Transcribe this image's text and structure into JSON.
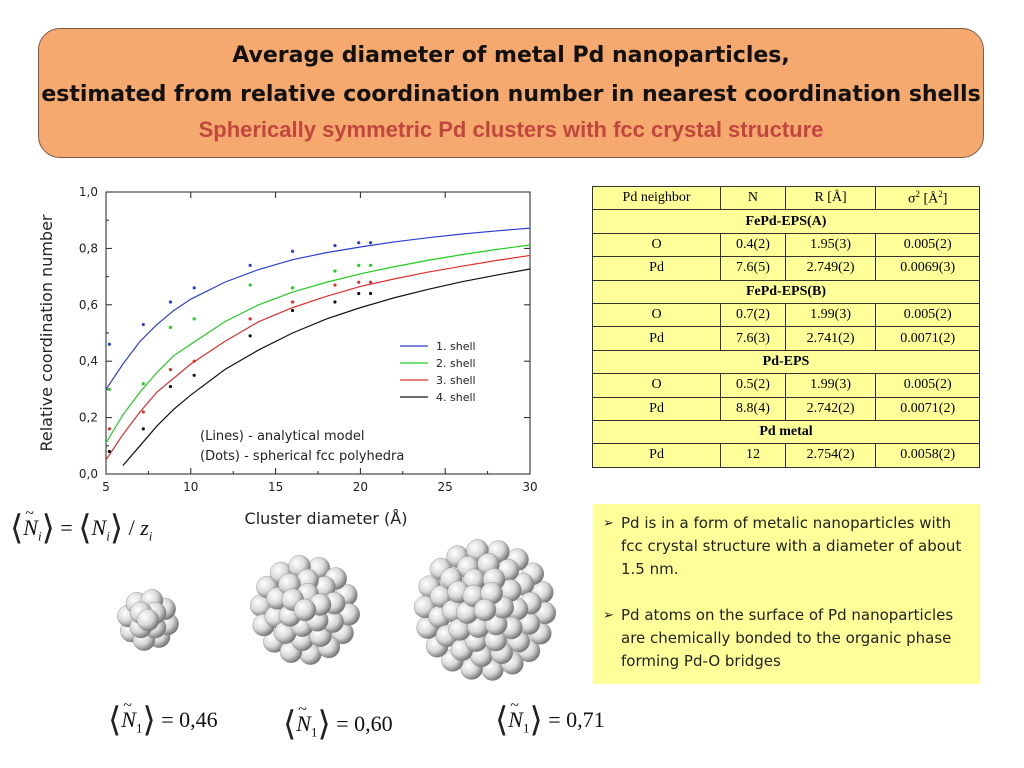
{
  "banner": {
    "title_line1": "Average diameter of metal Pd nanoparticles,",
    "title_line2": "estimated from relative coordination number in nearest coordination shells",
    "subtitle": "Spherically symmetric Pd clusters with  fcc crystal structure"
  },
  "chart_data": {
    "type": "line",
    "xlabel": "Cluster diameter (Å)",
    "ylabel": "Relative coordination number",
    "xlim": [
      5,
      30
    ],
    "ylim": [
      0.0,
      1.0
    ],
    "xticks": [
      "5",
      "10",
      "15",
      "20",
      "25",
      "30"
    ],
    "yticks": [
      "0,0",
      "0,2",
      "0,4",
      "0,6",
      "0,8",
      "1,0"
    ],
    "legend_position": "center-right",
    "annotation_lines": "(Lines) - analytical model",
    "annotation_dots": "(Dots)  - spherical fcc polyhedra",
    "series": [
      {
        "name": "1. shell",
        "color": "#2b3fd1",
        "line_x": [
          5,
          6,
          7,
          8,
          9,
          10,
          12,
          14,
          16,
          18,
          20,
          22,
          24,
          26,
          28,
          30
        ],
        "line_y": [
          0.3,
          0.39,
          0.47,
          0.53,
          0.58,
          0.62,
          0.68,
          0.725,
          0.76,
          0.785,
          0.805,
          0.823,
          0.838,
          0.851,
          0.862,
          0.872
        ],
        "dots_x": [
          5.2,
          7.2,
          8.8,
          10.2,
          13.5,
          16.0,
          18.5,
          19.9,
          20.6
        ],
        "dots_y": [
          0.46,
          0.53,
          0.61,
          0.66,
          0.74,
          0.79,
          0.81,
          0.82,
          0.82
        ]
      },
      {
        "name": "2. shell",
        "color": "#22cc22",
        "line_x": [
          5,
          6,
          7,
          8,
          9,
          10,
          12,
          14,
          16,
          18,
          20,
          22,
          24,
          26,
          28,
          30
        ],
        "line_y": [
          0.11,
          0.21,
          0.29,
          0.36,
          0.42,
          0.46,
          0.54,
          0.6,
          0.645,
          0.68,
          0.71,
          0.735,
          0.758,
          0.778,
          0.796,
          0.812
        ],
        "dots_x": [
          5.2,
          7.2,
          8.8,
          10.2,
          13.5,
          16.0,
          18.5,
          19.9,
          20.6
        ],
        "dots_y": [
          0.3,
          0.32,
          0.52,
          0.55,
          0.67,
          0.66,
          0.72,
          0.74,
          0.74
        ]
      },
      {
        "name": "3. shell",
        "color": "#e03030",
        "line_x": [
          5,
          6,
          7,
          8,
          9,
          10,
          12,
          14,
          16,
          18,
          20,
          22,
          24,
          26,
          28,
          30
        ],
        "line_y": [
          0.05,
          0.14,
          0.22,
          0.29,
          0.34,
          0.39,
          0.47,
          0.54,
          0.59,
          0.63,
          0.665,
          0.692,
          0.716,
          0.737,
          0.757,
          0.775
        ],
        "dots_x": [
          5.2,
          7.2,
          8.8,
          10.2,
          13.5,
          16.0,
          18.5,
          19.9,
          20.6
        ],
        "dots_y": [
          0.16,
          0.22,
          0.37,
          0.4,
          0.55,
          0.61,
          0.67,
          0.68,
          0.68
        ]
      },
      {
        "name": "4. shell",
        "color": "#111111",
        "line_x": [
          6,
          7,
          8,
          9,
          10,
          12,
          14,
          16,
          18,
          20,
          22,
          24,
          26,
          28,
          30
        ],
        "line_y": [
          0.03,
          0.1,
          0.17,
          0.23,
          0.28,
          0.37,
          0.44,
          0.5,
          0.55,
          0.59,
          0.625,
          0.655,
          0.682,
          0.705,
          0.727
        ],
        "dots_x": [
          5.2,
          7.2,
          8.8,
          10.2,
          13.5,
          16.0,
          18.5,
          19.9,
          20.6
        ],
        "dots_y": [
          0.08,
          0.16,
          0.31,
          0.35,
          0.49,
          0.58,
          0.61,
          0.64,
          0.64
        ]
      }
    ]
  },
  "table": {
    "headers": [
      "Pd neighbor",
      "N",
      "R [Å]",
      "σ2 [Å2]"
    ],
    "rows": [
      {
        "group": "FePd-EPS(A)"
      },
      {
        "cells": [
          "O",
          "0.4(2)",
          "1.95(3)",
          "0.005(2)"
        ]
      },
      {
        "cells": [
          "Pd",
          "7.6(5)",
          "2.749(2)",
          "0.0069(3)"
        ]
      },
      {
        "group": "FePd-EPS(B)"
      },
      {
        "cells": [
          "O",
          "0.7(2)",
          "1.99(3)",
          "0.005(2)"
        ]
      },
      {
        "cells": [
          "Pd",
          "7.6(3)",
          "2.741(2)",
          "0.0071(2)"
        ]
      },
      {
        "group": "Pd-EPS"
      },
      {
        "cells": [
          "O",
          "0.5(2)",
          "1.99(3)",
          "0.005(2)"
        ]
      },
      {
        "cells": [
          "Pd",
          "8.8(4)",
          "2.742(2)",
          "0.0071(2)"
        ]
      },
      {
        "group": "Pd metal"
      },
      {
        "cells": [
          "Pd",
          "12",
          "2.754(2)",
          "0.0058(2)"
        ]
      }
    ]
  },
  "notes": [
    "Pd is in a form of metalic nanoparticles with fcc crystal structure with a diameter of about 1.5 nm.",
    "Pd atoms on the surface of Pd nanoparticles are chemically bonded to the organic  phase forming Pd-O bridges"
  ],
  "formulas": {
    "definition": {
      "N": "N",
      "i": "i",
      "div": "/",
      "z": "z"
    },
    "values": [
      "0,46",
      "0,60",
      "0,71"
    ],
    "sub": "1"
  }
}
